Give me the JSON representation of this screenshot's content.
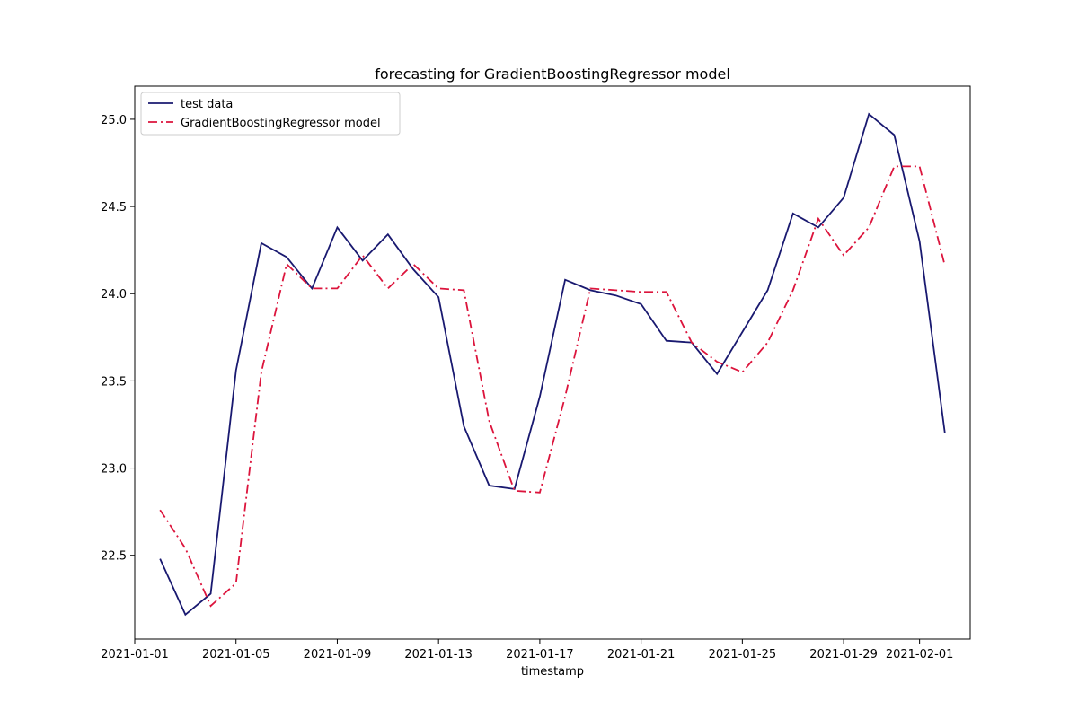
{
  "chart_data": {
    "type": "line",
    "title": "forecasting for GradientBoostingRegressor model",
    "xlabel": "timestamp",
    "ylabel": "",
    "x": [
      "2021-01-02",
      "2021-01-03",
      "2021-01-04",
      "2021-01-05",
      "2021-01-06",
      "2021-01-07",
      "2021-01-08",
      "2021-01-09",
      "2021-01-10",
      "2021-01-11",
      "2021-01-12",
      "2021-01-13",
      "2021-01-14",
      "2021-01-15",
      "2021-01-16",
      "2021-01-17",
      "2021-01-18",
      "2021-01-19",
      "2021-01-20",
      "2021-01-21",
      "2021-01-22",
      "2021-01-23",
      "2021-01-24",
      "2021-01-25",
      "2021-01-26",
      "2021-01-27",
      "2021-01-28",
      "2021-01-29",
      "2021-01-30",
      "2021-01-31",
      "2021-02-01",
      "2021-02-02"
    ],
    "series": [
      {
        "name": "test data",
        "color": "#191970",
        "style": "solid",
        "values": [
          22.48,
          22.16,
          22.28,
          23.56,
          24.29,
          24.21,
          24.03,
          24.38,
          24.19,
          24.34,
          24.14,
          23.98,
          23.24,
          22.9,
          22.88,
          23.41,
          24.08,
          24.02,
          23.99,
          23.94,
          23.73,
          23.72,
          23.54,
          23.78,
          24.02,
          24.46,
          24.38,
          24.55,
          25.03,
          24.91,
          24.3,
          23.2
        ]
      },
      {
        "name": "GradientBoostingRegressor model",
        "color": "#dc143c",
        "style": "dashdot",
        "values": [
          22.76,
          22.54,
          22.21,
          22.34,
          23.55,
          24.17,
          24.03,
          24.03,
          24.22,
          24.03,
          24.17,
          24.03,
          24.02,
          23.27,
          22.87,
          22.86,
          23.41,
          24.03,
          24.02,
          24.01,
          24.01,
          23.72,
          23.61,
          23.55,
          23.72,
          24.02,
          24.43,
          24.22,
          24.38,
          24.73,
          24.73,
          24.16
        ]
      }
    ],
    "x_ticks": [
      "2021-01-01",
      "2021-01-05",
      "2021-01-09",
      "2021-01-13",
      "2021-01-17",
      "2021-01-21",
      "2021-01-25",
      "2021-01-29",
      "2021-02-01"
    ],
    "y_ticks": [
      "22.5",
      "23.0",
      "23.5",
      "24.0",
      "24.5",
      "25.0"
    ],
    "xlim": [
      "2021-01-01",
      "2021-02-03"
    ],
    "ylim": [
      22.02,
      25.19
    ],
    "grid": false,
    "legend_position": "upper left"
  }
}
